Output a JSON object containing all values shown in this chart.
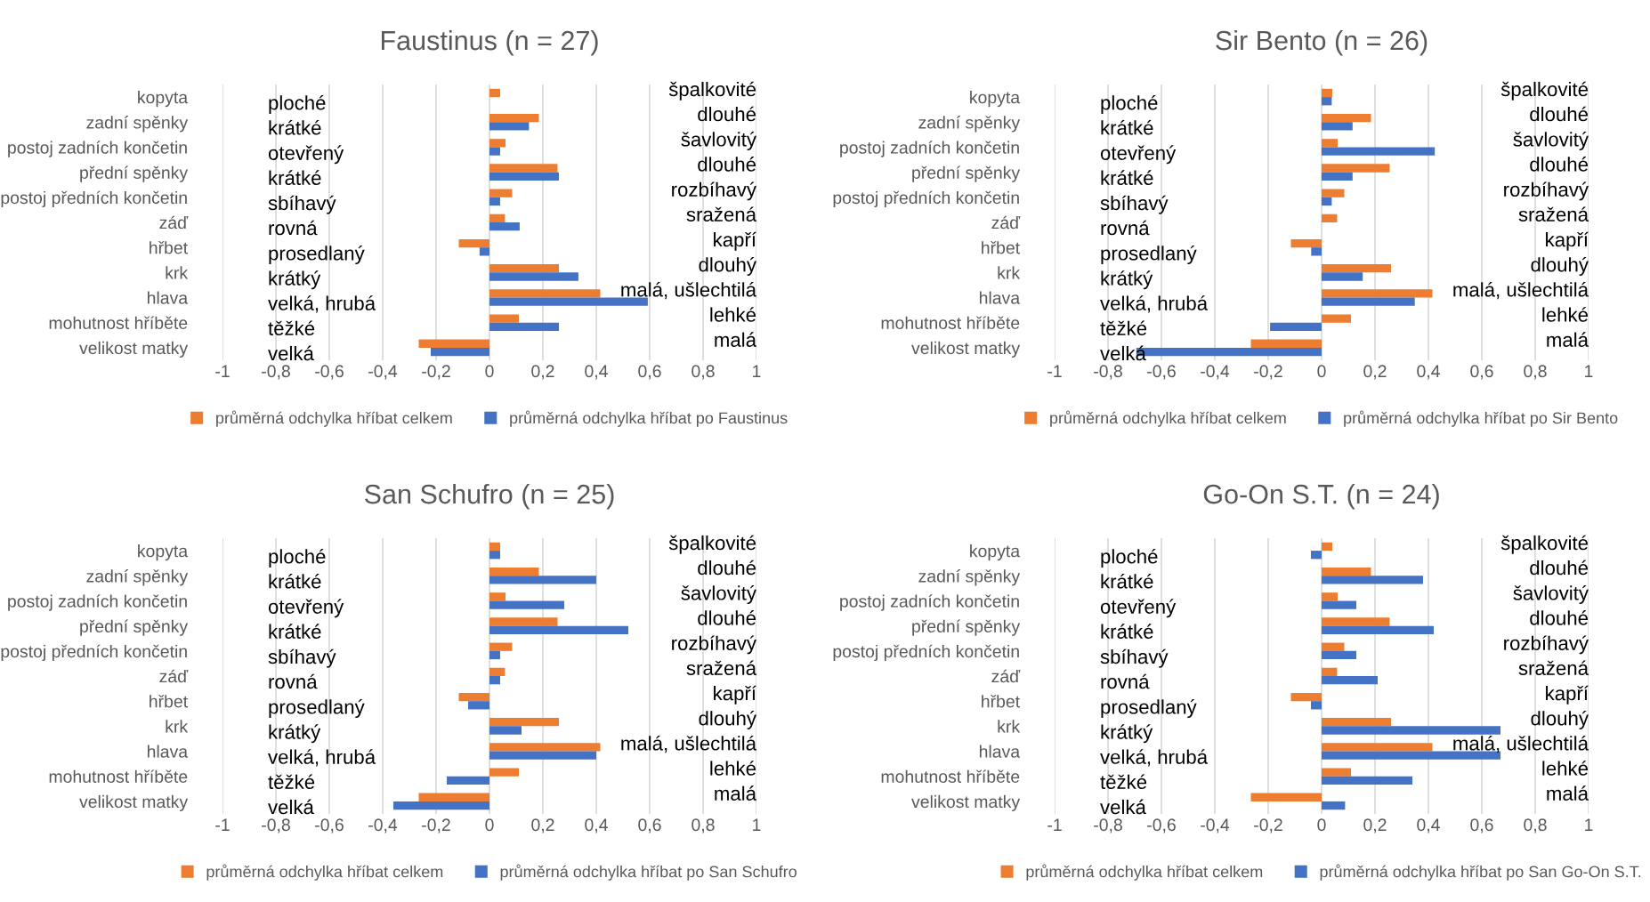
{
  "chart_data": [
    {
      "type": "bar",
      "orientation": "horizontal",
      "title": "Faustinus (n = 27)",
      "categories": [
        "kopyta",
        "zadní spěnky",
        "postoj zadních končetin",
        "přední spěnky",
        "postoj předních končetin",
        "záď",
        "hřbet",
        "krk",
        "hlava",
        "mohutnost hříběte",
        "velikost matky"
      ],
      "series": [
        {
          "name": "průměrná odchylka hříbat celkem",
          "color": "#ed7d31",
          "values": [
            0.04,
            0.185,
            0.06,
            0.255,
            0.085,
            0.058,
            -0.115,
            0.26,
            0.415,
            0.11,
            -0.265
          ]
        },
        {
          "name": "průměrná odchylka hříbat po Faustinus",
          "color": "#4472c4",
          "values": [
            0,
            0.148,
            0.04,
            0.26,
            0.04,
            0.113,
            -0.037,
            0.333,
            0.593,
            0.26,
            -0.22
          ]
        }
      ],
      "xlim": [
        -1,
        1
      ],
      "xticks": [
        {
          "value": -1,
          "label": "-1"
        },
        {
          "value": -0.8,
          "label": "-0,8"
        },
        {
          "value": -0.6,
          "label": "-0,6"
        },
        {
          "value": -0.4,
          "label": "-0,4"
        },
        {
          "value": -0.2,
          "label": "-0,2"
        },
        {
          "value": 0,
          "label": "0"
        },
        {
          "value": 0.2,
          "label": "0,2"
        },
        {
          "value": 0.4,
          "label": "0,4"
        },
        {
          "value": 0.6,
          "label": "0,6"
        },
        {
          "value": 0.8,
          "label": "0,8"
        },
        {
          "value": 1,
          "label": "1"
        }
      ],
      "grid": "x",
      "legend": "bottom",
      "annotations": [
        "ploché",
        "krátké",
        "otevřený",
        "krátké",
        "sbíhavý",
        "rovná",
        "prosedlaný",
        "krátký",
        "velká, hrubá",
        "těžké",
        "velká",
        "špalkovité",
        "dlouhé",
        "šavlovitý",
        "dlouhé",
        "rozbíhavý",
        "sražená",
        "kapří",
        "dlouhý",
        "malá, ušlechtilá",
        "lehké",
        "malá"
      ]
    },
    {
      "type": "bar",
      "orientation": "horizontal",
      "title": "Sir Bento (n = 26)",
      "categories": [
        "kopyta",
        "zadní spěnky",
        "postoj zadních končetin",
        "přední spěnky",
        "postoj předních končetin",
        "záď",
        "hřbet",
        "krk",
        "hlava",
        "mohutnost hříběte",
        "velikost matky"
      ],
      "series": [
        {
          "name": "průměrná odchylka hříbat celkem",
          "color": "#ed7d31",
          "values": [
            0.04,
            0.185,
            0.06,
            0.255,
            0.085,
            0.058,
            -0.115,
            0.26,
            0.415,
            0.11,
            -0.265
          ]
        },
        {
          "name": "průměrná odchylka hříbat po Sir Bento",
          "color": "#4472c4",
          "values": [
            0.038,
            0.116,
            0.424,
            0.116,
            0.038,
            0,
            -0.039,
            0.154,
            0.349,
            -0.193,
            -0.694
          ]
        }
      ],
      "xlim": [
        -1,
        1
      ],
      "xticks": [
        {
          "value": -1,
          "label": "-1"
        },
        {
          "value": -0.8,
          "label": "-0,8"
        },
        {
          "value": -0.6,
          "label": "-0,6"
        },
        {
          "value": -0.4,
          "label": "-0,4"
        },
        {
          "value": -0.2,
          "label": "-0,2"
        },
        {
          "value": 0,
          "label": "0"
        },
        {
          "value": 0.2,
          "label": "0,2"
        },
        {
          "value": 0.4,
          "label": "0,4"
        },
        {
          "value": 0.6,
          "label": "0,6"
        },
        {
          "value": 0.8,
          "label": "0,8"
        },
        {
          "value": 1,
          "label": "1"
        }
      ],
      "grid": "x",
      "legend": "bottom",
      "annotations": [
        "ploché",
        "krátké",
        "otevřený",
        "krátké",
        "sbíhavý",
        "rovná",
        "prosedlaný",
        "krátký",
        "velká, hrubá",
        "těžké",
        "velká",
        "špalkovité",
        "dlouhé",
        "šavlovitý",
        "dlouhé",
        "rozbíhavý",
        "sražená",
        "kapří",
        "dlouhý",
        "malá, ušlechtilá",
        "lehké",
        "malá"
      ]
    },
    {
      "type": "bar",
      "orientation": "horizontal",
      "title": "San Schufro (n = 25)",
      "categories": [
        "kopyta",
        "zadní spěnky",
        "postoj zadních končetin",
        "přední spěnky",
        "postoj předních končetin",
        "záď",
        "hřbet",
        "krk",
        "hlava",
        "mohutnost hříběte",
        "velikost matky"
      ],
      "series": [
        {
          "name": "průměrná odchylka hříbat celkem",
          "color": "#ed7d31",
          "values": [
            0.04,
            0.185,
            0.06,
            0.255,
            0.085,
            0.058,
            -0.115,
            0.26,
            0.415,
            0.11,
            -0.265
          ]
        },
        {
          "name": "průměrná odchylka hříbat po San Schufro",
          "color": "#4472c4",
          "values": [
            0.04,
            0.4,
            0.28,
            0.52,
            0.04,
            0.04,
            -0.08,
            0.12,
            0.4,
            -0.16,
            -0.36
          ]
        }
      ],
      "xlim": [
        -1,
        1
      ],
      "xticks": [
        {
          "value": -1,
          "label": "-1"
        },
        {
          "value": -0.8,
          "label": "-0,8"
        },
        {
          "value": -0.6,
          "label": "-0,6"
        },
        {
          "value": -0.4,
          "label": "-0,4"
        },
        {
          "value": -0.2,
          "label": "-0,2"
        },
        {
          "value": 0,
          "label": "0"
        },
        {
          "value": 0.2,
          "label": "0,2"
        },
        {
          "value": 0.4,
          "label": "0,4"
        },
        {
          "value": 0.6,
          "label": "0,6"
        },
        {
          "value": 0.8,
          "label": "0,8"
        },
        {
          "value": 1,
          "label": "1"
        }
      ],
      "grid": "x",
      "legend": "bottom",
      "annotations": [
        "ploché",
        "krátké",
        "otevřený",
        "krátké",
        "sbíhavý",
        "rovná",
        "prosedlaný",
        "krátký",
        "velká, hrubá",
        "těžké",
        "velká",
        "špalkovité",
        "dlouhé",
        "šavlovitý",
        "dlouhé",
        "rozbíhavý",
        "sražená",
        "kapří",
        "dlouhý",
        "malá, ušlechtilá",
        "lehké",
        "malá"
      ]
    },
    {
      "type": "bar",
      "orientation": "horizontal",
      "title": "Go-On S.T. (n = 24)",
      "categories": [
        "kopyta",
        "zadní spěnky",
        "postoj zadních končetin",
        "přední spěnky",
        "postoj předních končetin",
        "záď",
        "hřbet",
        "krk",
        "hlava",
        "mohutnost hříběte",
        "velikost matky"
      ],
      "series": [
        {
          "name": "průměrná odchylka hříbat celkem",
          "color": "#ed7d31",
          "values": [
            0.04,
            0.185,
            0.06,
            0.255,
            0.085,
            0.058,
            -0.115,
            0.26,
            0.415,
            0.11,
            -0.265
          ]
        },
        {
          "name": "průměrná odchylka hříbat po San Go-On S.T.",
          "color": "#4472c4",
          "values": [
            -0.04,
            0.38,
            0.13,
            0.42,
            0.13,
            0.21,
            -0.04,
            0.67,
            0.67,
            0.34,
            0.088
          ]
        }
      ],
      "xlim": [
        -1,
        1
      ],
      "xticks": [
        {
          "value": -1,
          "label": "-1"
        },
        {
          "value": -0.8,
          "label": "-0,8"
        },
        {
          "value": -0.6,
          "label": "-0,6"
        },
        {
          "value": -0.4,
          "label": "-0,4"
        },
        {
          "value": -0.2,
          "label": "-0,2"
        },
        {
          "value": 0,
          "label": "0"
        },
        {
          "value": 0.2,
          "label": "0,2"
        },
        {
          "value": 0.4,
          "label": "0,4"
        },
        {
          "value": 0.6,
          "label": "0,6"
        },
        {
          "value": 0.8,
          "label": "0,8"
        },
        {
          "value": 1,
          "label": "1"
        }
      ],
      "grid": "x",
      "legend": "bottom",
      "annotations": [
        "ploché",
        "krátké",
        "otevřený",
        "krátké",
        "sbíhavý",
        "rovná",
        "prosedlaný",
        "krátký",
        "velká, hrubá",
        "těžké",
        "velká",
        "špalkovité",
        "dlouhé",
        "šavlovitý",
        "dlouhé",
        "rozbíhavý",
        "sražená",
        "kapří",
        "dlouhý",
        "malá, ušlechtilá",
        "lehké",
        "malá"
      ]
    }
  ]
}
